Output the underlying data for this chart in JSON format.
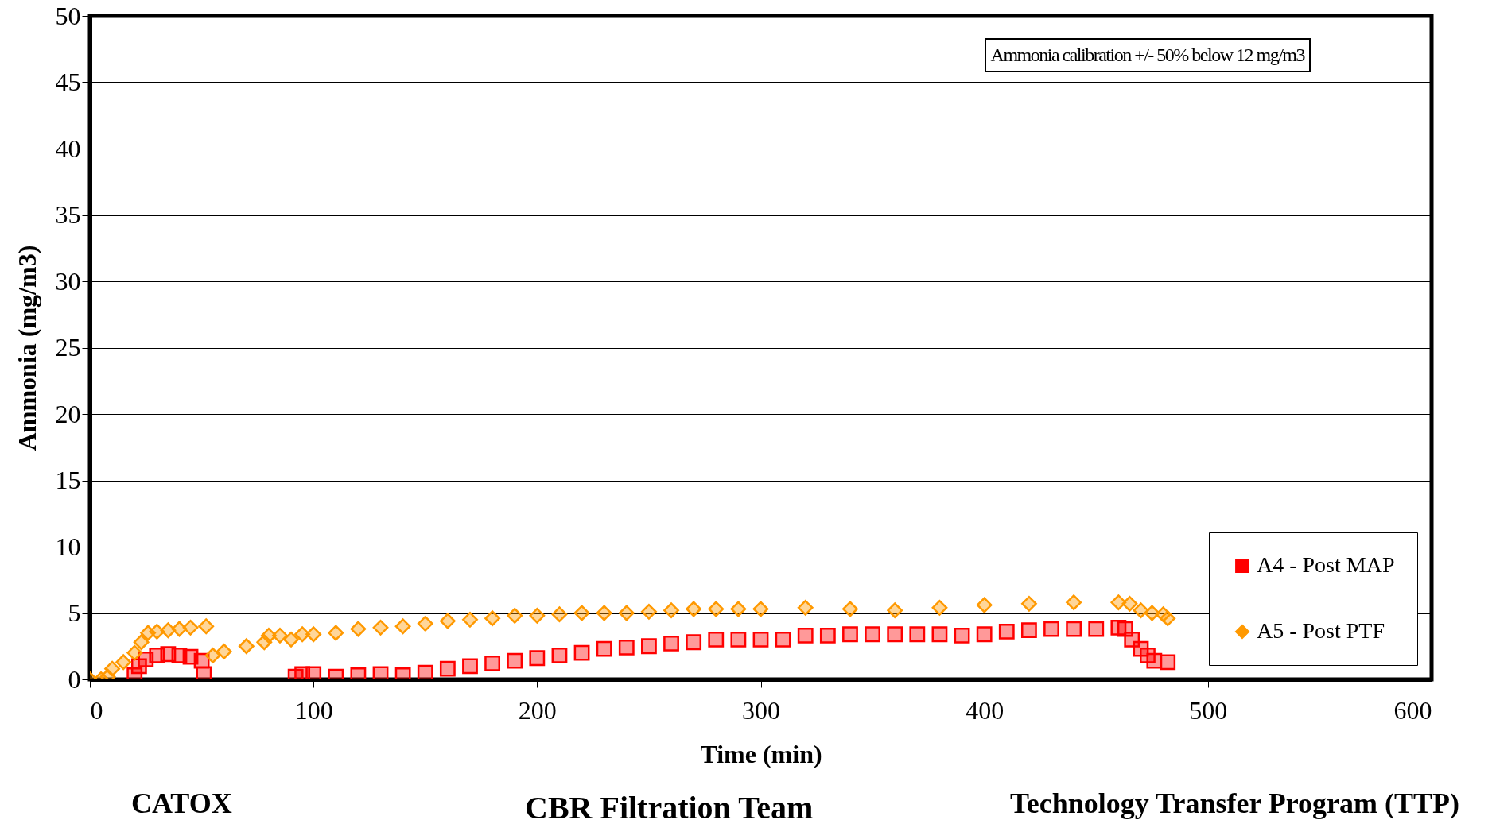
{
  "chart_data": {
    "type": "scatter",
    "xlabel": "Time (min)",
    "ylabel": "Ammonia (mg/m3)",
    "xlim": [
      0,
      600
    ],
    "xticks": [
      0,
      100,
      200,
      300,
      400,
      500,
      600
    ],
    "ylim": [
      0,
      50
    ],
    "yticks": [
      0,
      5,
      10,
      15,
      20,
      25,
      30,
      35,
      40,
      45,
      50
    ],
    "grid": "y",
    "legend": "bottom right",
    "annotations": [
      "Ammonia calibration +/- 50% below 12 mg/m3",
      "CATOX",
      "CBR Filtration Team",
      "Technology Transfer Program (TTP)"
    ],
    "series": [
      {
        "name": "A4 - Post MAP",
        "color": "#ff0000",
        "marker": "square",
        "x": [
          20,
          22,
          25,
          30,
          35,
          40,
          45,
          50,
          51,
          92,
          95,
          100,
          110,
          120,
          130,
          140,
          150,
          160,
          170,
          180,
          190,
          200,
          210,
          220,
          230,
          240,
          250,
          260,
          270,
          280,
          290,
          300,
          310,
          320,
          330,
          340,
          350,
          360,
          370,
          380,
          390,
          400,
          410,
          420,
          430,
          440,
          450,
          460,
          463,
          466,
          470,
          473,
          476,
          482
        ],
        "values": [
          0.3,
          1.0,
          1.5,
          1.8,
          1.9,
          1.8,
          1.7,
          1.4,
          0.4,
          0.2,
          0.4,
          0.4,
          0.2,
          0.3,
          0.4,
          0.3,
          0.5,
          0.8,
          1.0,
          1.2,
          1.4,
          1.6,
          1.8,
          2.0,
          2.3,
          2.4,
          2.5,
          2.7,
          2.8,
          3.0,
          3.0,
          3.0,
          3.0,
          3.3,
          3.3,
          3.4,
          3.4,
          3.4,
          3.4,
          3.4,
          3.3,
          3.4,
          3.6,
          3.7,
          3.8,
          3.8,
          3.8,
          3.9,
          3.8,
          3.0,
          2.3,
          1.8,
          1.4,
          1.3
        ]
      },
      {
        "name": "A5 - Post PTF",
        "color": "#ff9900",
        "marker": "diamond",
        "x": [
          0,
          5,
          8,
          10,
          15,
          20,
          23,
          26,
          30,
          35,
          40,
          45,
          52,
          55,
          60,
          70,
          78,
          80,
          85,
          90,
          95,
          100,
          110,
          120,
          130,
          140,
          150,
          160,
          170,
          180,
          190,
          200,
          210,
          220,
          230,
          240,
          250,
          260,
          270,
          280,
          290,
          300,
          320,
          340,
          360,
          380,
          400,
          420,
          440,
          460,
          465,
          470,
          475,
          480,
          482
        ],
        "values": [
          0,
          0,
          0.2,
          0.8,
          1.3,
          2.0,
          2.8,
          3.5,
          3.6,
          3.7,
          3.8,
          3.9,
          4.0,
          1.8,
          2.1,
          2.5,
          2.8,
          3.3,
          3.3,
          3.0,
          3.4,
          3.4,
          3.5,
          3.8,
          3.9,
          4.0,
          4.2,
          4.4,
          4.5,
          4.6,
          4.8,
          4.8,
          4.9,
          5.0,
          5.0,
          5.0,
          5.1,
          5.2,
          5.3,
          5.3,
          5.3,
          5.3,
          5.4,
          5.3,
          5.2,
          5.4,
          5.6,
          5.7,
          5.8,
          5.8,
          5.7,
          5.2,
          5.0,
          4.9,
          4.6
        ]
      }
    ]
  }
}
